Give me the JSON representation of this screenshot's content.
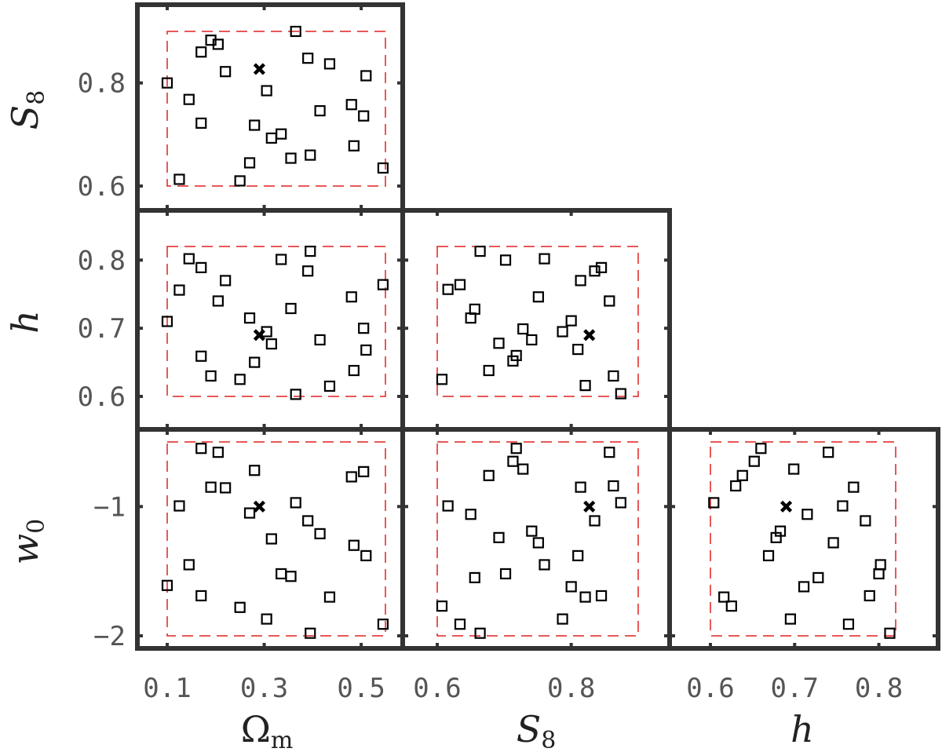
{
  "chart_data": {
    "type": "scatter",
    "layout": "triangle-corner-plot",
    "grid": false,
    "parameters": [
      {
        "key": "Om",
        "label_main": "Ω",
        "label_sub": "m",
        "label_sub_upright": true,
        "label_main_upright": true,
        "range": [
          0.05,
          0.56
        ],
        "ticks": [
          0.1,
          0.3,
          0.5
        ],
        "tick_labels": [
          "0.1",
          "0.3",
          "0.5"
        ]
      },
      {
        "key": "S8",
        "label_main": "S",
        "label_sub": "8",
        "range": [
          0.54,
          0.94
        ],
        "ticks": [
          0.6,
          0.8
        ],
        "tick_labels": [
          "0.6",
          "0.8"
        ]
      },
      {
        "key": "h",
        "label_main": "h",
        "label_sub": "",
        "range": [
          0.55,
          0.87
        ],
        "ticks": [
          0.6,
          0.7,
          0.8
        ],
        "tick_labels": [
          "0.6",
          "0.7",
          "0.8"
        ]
      },
      {
        "key": "w0",
        "label_main": "w",
        "label_sub": "0",
        "range": [
          -2.1,
          -0.45
        ],
        "ticks": [
          -1,
          -2
        ],
        "tick_labels": [
          "−1",
          "−2"
        ]
      }
    ],
    "prior": {
      "Om": [
        0.1,
        0.55
      ],
      "S8": [
        0.6,
        0.9
      ],
      "h": [
        0.6,
        0.82
      ],
      "w0": [
        -2.0,
        -0.5
      ]
    },
    "fiducial": {
      "Om": 0.29,
      "S8": 0.827,
      "h": 0.69,
      "w0": -1.0
    },
    "design_points": [
      {
        "Om": 0.1,
        "S8": 0.8,
        "h": 0.71,
        "w0": -1.61
      },
      {
        "Om": 0.125,
        "S8": 0.613,
        "h": 0.756,
        "w0": -0.995
      },
      {
        "Om": 0.145,
        "S8": 0.768,
        "h": 0.802,
        "w0": -1.45
      },
      {
        "Om": 0.17,
        "S8": 0.86,
        "h": 0.789,
        "w0": -1.69
      },
      {
        "Om": 0.17,
        "S8": 0.722,
        "h": 0.659,
        "w0": -0.55
      },
      {
        "Om": 0.19,
        "S8": 0.883,
        "h": 0.63,
        "w0": -0.85
      },
      {
        "Om": 0.205,
        "S8": 0.875,
        "h": 0.74,
        "w0": -0.58
      },
      {
        "Om": 0.22,
        "S8": 0.822,
        "h": 0.77,
        "w0": -0.855
      },
      {
        "Om": 0.25,
        "S8": 0.61,
        "h": 0.625,
        "w0": -1.78
      },
      {
        "Om": 0.27,
        "S8": 0.645,
        "h": 0.715,
        "w0": -1.05
      },
      {
        "Om": 0.28,
        "S8": 0.718,
        "h": 0.65,
        "w0": -0.72
      },
      {
        "Om": 0.305,
        "S8": 0.785,
        "h": 0.695,
        "w0": -1.87
      },
      {
        "Om": 0.315,
        "S8": 0.693,
        "h": 0.677,
        "w0": -1.25
      },
      {
        "Om": 0.335,
        "S8": 0.701,
        "h": 0.801,
        "w0": -1.52
      },
      {
        "Om": 0.355,
        "S8": 0.654,
        "h": 0.729,
        "w0": -1.54
      },
      {
        "Om": 0.365,
        "S8": 0.9,
        "h": 0.603,
        "w0": -0.97
      },
      {
        "Om": 0.39,
        "S8": 0.848,
        "h": 0.784,
        "w0": -1.11
      },
      {
        "Om": 0.395,
        "S8": 0.66,
        "h": 0.813,
        "w0": -1.98
      },
      {
        "Om": 0.415,
        "S8": 0.746,
        "h": 0.683,
        "w0": -1.21
      },
      {
        "Om": 0.435,
        "S8": 0.837,
        "h": 0.615,
        "w0": -1.7
      },
      {
        "Om": 0.48,
        "S8": 0.758,
        "h": 0.746,
        "w0": -0.77
      },
      {
        "Om": 0.485,
        "S8": 0.678,
        "h": 0.638,
        "w0": -1.3
      },
      {
        "Om": 0.505,
        "S8": 0.736,
        "h": 0.7,
        "w0": -0.73
      },
      {
        "Om": 0.51,
        "S8": 0.814,
        "h": 0.668,
        "w0": -1.38
      },
      {
        "Om": 0.545,
        "S8": 0.635,
        "h": 0.764,
        "w0": -1.91
      }
    ],
    "design_points_lower_row": [
      {
        "S8": 0.607,
        "h": 0.625,
        "w0": -1.77
      },
      {
        "S8": 0.616,
        "h": 0.757,
        "w0": -0.995
      },
      {
        "S8": 0.634,
        "h": 0.764,
        "w0": -1.91
      },
      {
        "S8": 0.65,
        "h": 0.715,
        "w0": -1.06
      },
      {
        "S8": 0.656,
        "h": 0.728,
        "w0": -1.55
      },
      {
        "S8": 0.664,
        "h": 0.813,
        "w0": -1.98
      },
      {
        "S8": 0.677,
        "h": 0.638,
        "w0": -0.76
      },
      {
        "S8": 0.692,
        "h": 0.678,
        "w0": -1.24
      },
      {
        "S8": 0.702,
        "h": 0.8,
        "w0": -1.52
      },
      {
        "S8": 0.713,
        "h": 0.652,
        "w0": -0.65
      },
      {
        "S8": 0.718,
        "h": 0.66,
        "w0": -0.55
      },
      {
        "S8": 0.728,
        "h": 0.699,
        "w0": -0.71
      },
      {
        "S8": 0.741,
        "h": 0.683,
        "w0": -1.19
      },
      {
        "S8": 0.751,
        "h": 0.746,
        "w0": -1.28
      },
      {
        "S8": 0.76,
        "h": 0.802,
        "w0": -1.45
      },
      {
        "S8": 0.787,
        "h": 0.695,
        "w0": -1.87
      },
      {
        "S8": 0.8,
        "h": 0.711,
        "w0": -1.62
      },
      {
        "S8": 0.81,
        "h": 0.669,
        "w0": -1.38
      },
      {
        "S8": 0.814,
        "h": 0.77,
        "w0": -0.85
      },
      {
        "S8": 0.821,
        "h": 0.616,
        "w0": -1.7
      },
      {
        "S8": 0.835,
        "h": 0.784,
        "w0": -1.11
      },
      {
        "S8": 0.845,
        "h": 0.789,
        "w0": -1.69
      },
      {
        "S8": 0.857,
        "h": 0.74,
        "w0": -0.58
      },
      {
        "S8": 0.863,
        "h": 0.63,
        "w0": -0.84
      },
      {
        "S8": 0.874,
        "h": 0.604,
        "w0": -0.97
      }
    ]
  }
}
